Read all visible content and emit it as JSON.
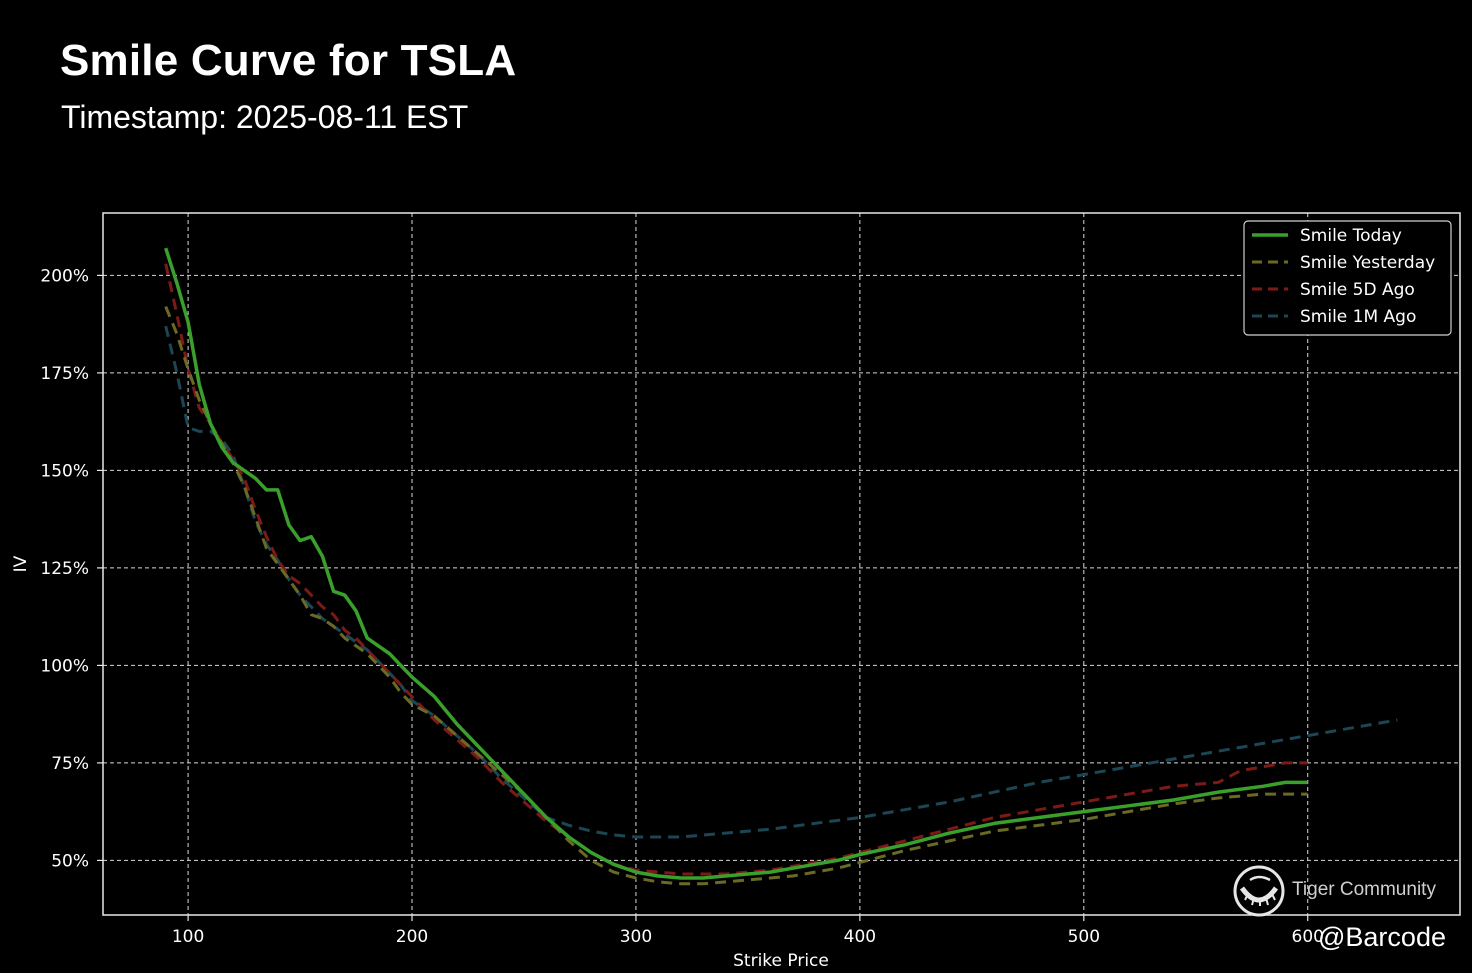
{
  "header": {
    "title": "Smile Curve for TSLA",
    "subtitle": "Timestamp: 2025-08-11 EST"
  },
  "watermark": {
    "brand": "Tiger Community",
    "handle": "@Barcode"
  },
  "chart_data": {
    "type": "line",
    "title": "Smile Curve for TSLA",
    "subtitle": "Timestamp: 2025-08-11 EST",
    "xlabel": "Strike Price",
    "ylabel": "IV",
    "xlim": [
      62,
      668
    ],
    "ylim": [
      36,
      216
    ],
    "x_ticks": [
      100,
      200,
      300,
      400,
      500,
      600
    ],
    "x_tick_labels": [
      "100",
      "200",
      "300",
      "400",
      "500",
      "600"
    ],
    "y_ticks": [
      50,
      75,
      100,
      125,
      150,
      175,
      200
    ],
    "y_tick_labels": [
      "50%",
      "75%",
      "100%",
      "125%",
      "150%",
      "175%",
      "200%"
    ],
    "grid": true,
    "legend_position": "top-right",
    "series": [
      {
        "name": "Smile Today",
        "color": "#3aa02c",
        "style": "solid",
        "x": [
          90,
          95,
          100,
          105,
          110,
          115,
          120,
          125,
          130,
          135,
          140,
          145,
          150,
          155,
          160,
          165,
          170,
          175,
          180,
          185,
          190,
          195,
          200,
          210,
          220,
          230,
          240,
          250,
          260,
          270,
          280,
          290,
          300,
          310,
          320,
          330,
          340,
          350,
          360,
          370,
          380,
          390,
          400,
          420,
          440,
          460,
          480,
          500,
          520,
          540,
          560,
          580,
          590,
          600
        ],
        "y": [
          207,
          198,
          188,
          172,
          162,
          156,
          152,
          150,
          148,
          145,
          145,
          136,
          132,
          133,
          128,
          119,
          118,
          114,
          107,
          105,
          103,
          100,
          97,
          92,
          85,
          79,
          73,
          67,
          61,
          56,
          52,
          49,
          47,
          46,
          45.5,
          45.5,
          46,
          46.5,
          47,
          48,
          49,
          50,
          51.5,
          54,
          57,
          59.5,
          61,
          62.5,
          64,
          65.5,
          67.5,
          69,
          70,
          70
        ]
      },
      {
        "name": "Smile Yesterday",
        "color": "#6b6a23",
        "style": "dashed",
        "x": [
          90,
          95,
          100,
          105,
          110,
          115,
          120,
          125,
          130,
          135,
          140,
          145,
          150,
          155,
          160,
          165,
          170,
          175,
          180,
          185,
          190,
          195,
          200,
          210,
          220,
          230,
          240,
          250,
          260,
          270,
          280,
          290,
          300,
          310,
          320,
          330,
          340,
          350,
          360,
          370,
          380,
          390,
          400,
          420,
          440,
          460,
          480,
          500,
          520,
          540,
          560,
          580,
          590,
          600
        ],
        "y": [
          192,
          185,
          176,
          168,
          162,
          157,
          152,
          146,
          138,
          130,
          126,
          122,
          118,
          113,
          112,
          110,
          107,
          105,
          103,
          100,
          97,
          93,
          90,
          87,
          82,
          77,
          72,
          67,
          61,
          55,
          50,
          47,
          45.5,
          44.5,
          44,
          44,
          44.5,
          45,
          45.5,
          46,
          47,
          48,
          49.5,
          52.5,
          55,
          57.5,
          59,
          60.5,
          62.5,
          64.5,
          66,
          67,
          67,
          67
        ]
      },
      {
        "name": "Smile 5D Ago",
        "color": "#7b1a17",
        "style": "dashed",
        "x": [
          90,
          95,
          100,
          105,
          110,
          115,
          120,
          125,
          130,
          135,
          140,
          145,
          150,
          155,
          160,
          165,
          170,
          175,
          180,
          185,
          190,
          195,
          200,
          210,
          220,
          230,
          240,
          250,
          260,
          270,
          280,
          290,
          300,
          310,
          320,
          330,
          340,
          350,
          360,
          370,
          380,
          390,
          400,
          420,
          440,
          460,
          480,
          500,
          520,
          540,
          560,
          570,
          580,
          590,
          600
        ],
        "y": [
          203,
          190,
          176,
          166,
          162,
          157,
          153,
          148,
          140,
          133,
          127,
          123,
          121,
          118,
          115,
          113,
          109,
          107,
          104,
          101,
          98,
          95,
          92,
          86,
          81,
          76,
          70,
          65,
          60,
          56,
          52,
          49,
          47.5,
          47,
          46.5,
          46.5,
          46.5,
          47,
          47.5,
          48.5,
          49.5,
          50.5,
          52,
          55,
          58,
          61,
          63,
          65,
          67,
          69,
          70,
          73,
          74,
          75,
          75
        ]
      },
      {
        "name": "Smile 1M Ago",
        "color": "#1b4654",
        "style": "dashed",
        "x": [
          90,
          95,
          100,
          105,
          110,
          115,
          120,
          125,
          130,
          135,
          140,
          145,
          150,
          155,
          160,
          165,
          170,
          175,
          180,
          185,
          190,
          195,
          200,
          210,
          220,
          230,
          240,
          250,
          260,
          270,
          280,
          290,
          300,
          320,
          340,
          360,
          380,
          400,
          420,
          440,
          460,
          480,
          500,
          520,
          540,
          560,
          580,
          600,
          620,
          640
        ],
        "y": [
          187,
          175,
          161,
          160,
          160,
          158,
          154,
          146,
          137,
          131,
          127,
          122,
          118,
          115,
          112,
          110,
          108,
          106,
          104,
          101,
          98,
          95,
          91,
          87,
          82,
          77,
          71,
          66,
          61,
          59,
          57.5,
          56.5,
          56,
          56,
          57,
          58,
          59.5,
          61,
          63,
          65,
          67.5,
          70,
          72,
          74,
          76,
          78,
          80,
          82,
          84,
          86
        ]
      }
    ]
  }
}
